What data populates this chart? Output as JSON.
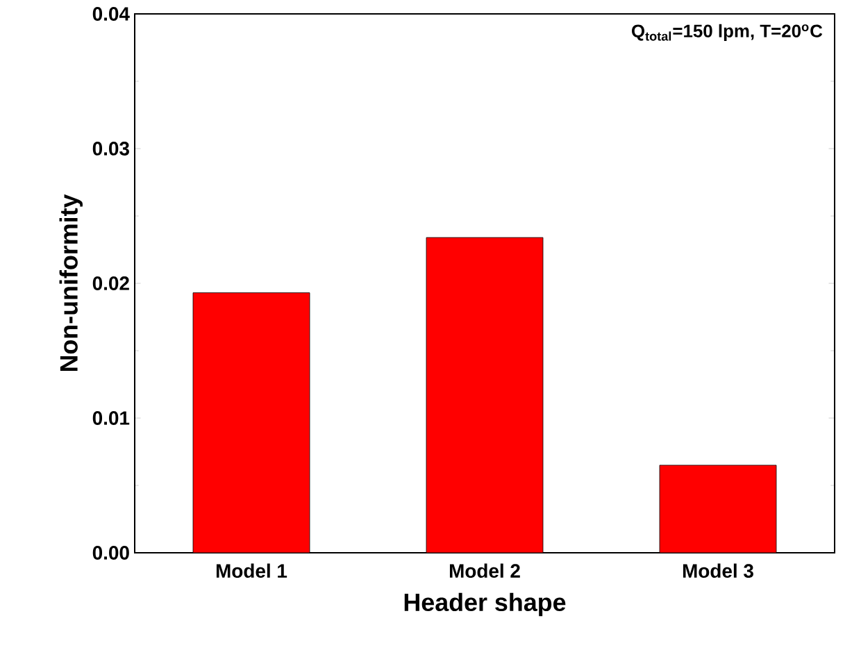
{
  "chart_data": {
    "type": "bar",
    "categories": [
      "Model 1",
      "Model 2",
      "Model 3"
    ],
    "values": [
      0.0193,
      0.0234,
      0.0065
    ],
    "color": "#ff0000",
    "xlabel": "Header shape",
    "ylabel": "Non-uniformity",
    "ylim": [
      0,
      0.04
    ],
    "yticks": [
      {
        "value": 0,
        "label": "0.00"
      },
      {
        "value": 0.01,
        "label": "0.01"
      },
      {
        "value": 0.02,
        "label": "0.02"
      },
      {
        "value": 0.03,
        "label": "0.03"
      },
      {
        "value": 0.04,
        "label": "0.04"
      }
    ],
    "annotations": [
      "Q$_{total}$=150 lpm, T=20$^{o}$C"
    ]
  }
}
